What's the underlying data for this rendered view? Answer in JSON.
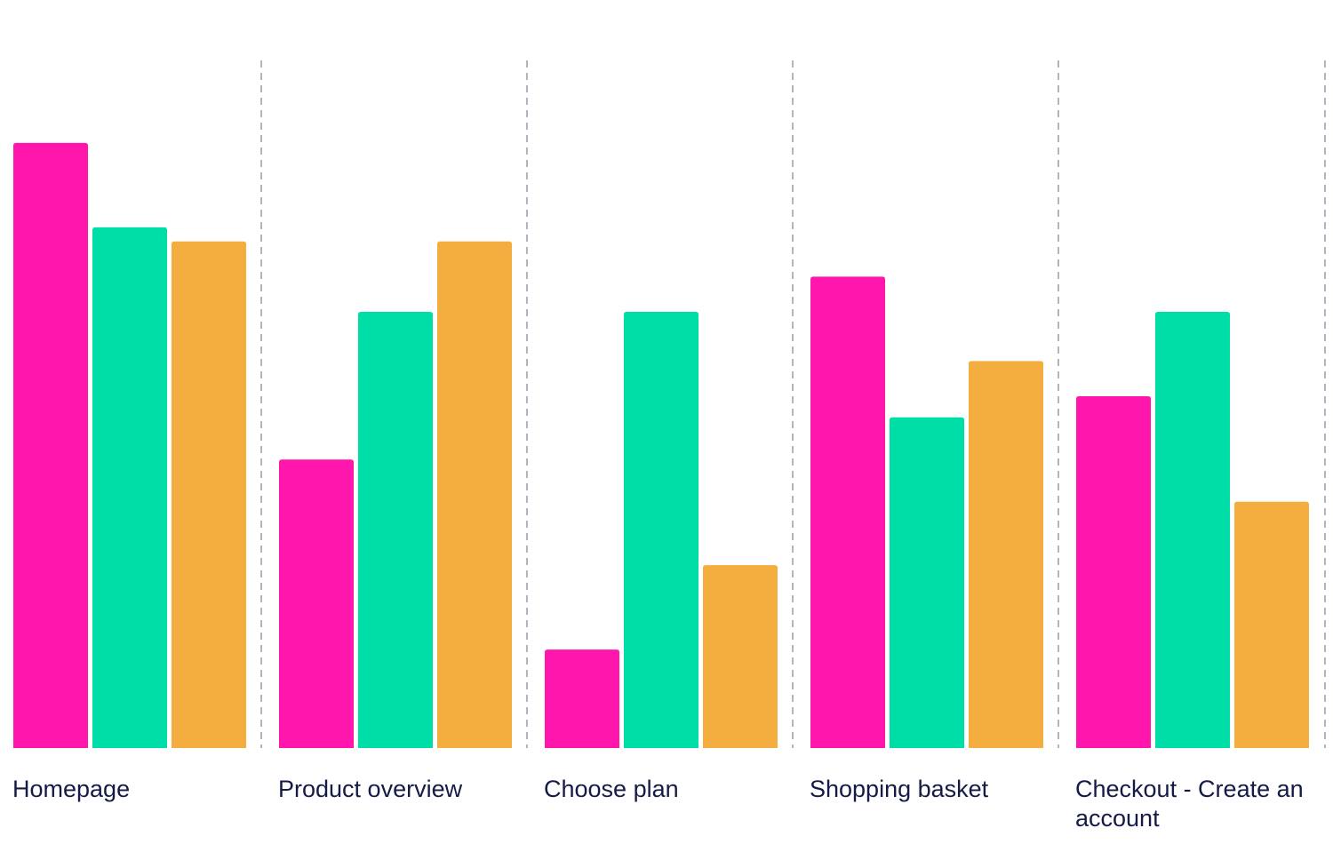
{
  "colors": {
    "series_a": "#ff17ad",
    "series_b": "#00dea8",
    "series_c": "#f4ae40",
    "divider": "#b3b3c1",
    "label": "#151b47"
  },
  "chart_data": {
    "type": "bar",
    "categories": [
      "Homepage",
      "Product overview",
      "Choose plan",
      "Shopping basket",
      "Checkout - Create an account"
    ],
    "series": [
      {
        "values": [
          86,
          41,
          14,
          67,
          50
        ]
      },
      {
        "values": [
          74,
          62,
          62,
          47,
          62
        ]
      },
      {
        "values": [
          72,
          72,
          26,
          55,
          35
        ]
      }
    ],
    "ylim": [
      0,
      100
    ],
    "grid": false,
    "legend": "none"
  }
}
